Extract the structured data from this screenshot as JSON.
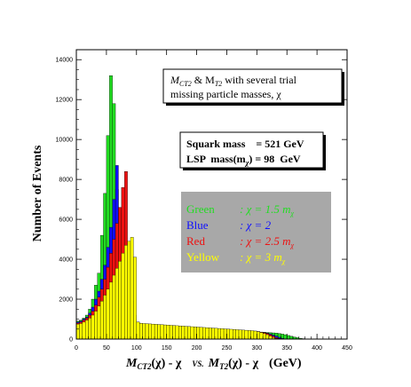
{
  "chart_data": {
    "type": "bar",
    "title_line1_a": "M",
    "title_line1_sub_a": "CT2",
    "title_line1_b": " & M",
    "title_line1_sub_b": "T2",
    "title_line1_c": " with several trial",
    "title_line2": "missing particle masses, χ",
    "info_line1": "Squark mass    = 521 GeV",
    "info_line2_a": "LSP  mass(m",
    "info_line2_sub": "χ",
    "info_line2_b": ") = 98  GeV",
    "xlabel": "M",
    "xlabel_full": "M_CT2(χ) - χ  vs. M_T2(χ) - χ   (GeV)",
    "xlabel_part1_sub": "CT2",
    "xlabel_part2": "(χ) - χ",
    "xlabel_vs": "VS.",
    "xlabel_part3": "M",
    "xlabel_part3_sub": "T2",
    "xlabel_part4": "(χ) - χ",
    "xlabel_unit": "(GeV)",
    "ylabel": "Number  of  Events",
    "xlim": [
      0,
      450
    ],
    "ylim": [
      0,
      14500
    ],
    "xticks": [
      0,
      50,
      100,
      150,
      200,
      250,
      300,
      350,
      400,
      450
    ],
    "yticks": [
      0,
      2000,
      4000,
      6000,
      8000,
      10000,
      12000,
      14000
    ],
    "bin_width": 5,
    "legend": [
      {
        "name": "Green",
        "sep": ":",
        "expr": "χ  = 1.5 m",
        "sub": "χ",
        "color": "#22dd22"
      },
      {
        "name": "Blue",
        "sep": ":",
        "expr": "χ  = 2",
        "sub": "",
        "color": "#1010ff"
      },
      {
        "name": "Red",
        "sep": ":",
        "expr": "χ  = 2.5 m",
        "sub": "χ",
        "color": "#ee1111"
      },
      {
        "name": "Yellow",
        "sep": ":",
        "expr": "χ  = 3 m",
        "sub": "χ",
        "color": "#ffff00"
      }
    ],
    "legend_bg": "#a8a8a8",
    "series": [
      {
        "name": "Green",
        "color": "#22dd22",
        "x": [
          0,
          5,
          10,
          15,
          20,
          25,
          30,
          35,
          40,
          45,
          50,
          55,
          60,
          65,
          70,
          75,
          80,
          85,
          90,
          95,
          100,
          105,
          110,
          115,
          120,
          125,
          130,
          135,
          140,
          145,
          150,
          155,
          160,
          165,
          170,
          175,
          180,
          185,
          190,
          195,
          200,
          205,
          210,
          215,
          220,
          225,
          230,
          235,
          240,
          245,
          250,
          255,
          260,
          265,
          270,
          275,
          280,
          285,
          290,
          295,
          300,
          305,
          310,
          315,
          320,
          325,
          330,
          335,
          340,
          345,
          350,
          355,
          360,
          365,
          370,
          375,
          380,
          385,
          390,
          395
        ],
        "values": [
          900,
          950,
          1050,
          1200,
          1500,
          2000,
          2700,
          3300,
          5200,
          7300,
          10200,
          13200,
          11800,
          7500,
          5500,
          3000,
          1800,
          1200,
          1100,
          900,
          760,
          750,
          740,
          730,
          720,
          710,
          700,
          690,
          680,
          670,
          660,
          650,
          640,
          630,
          620,
          610,
          600,
          590,
          580,
          570,
          560,
          550,
          540,
          530,
          520,
          510,
          500,
          490,
          480,
          470,
          460,
          450,
          440,
          430,
          420,
          410,
          400,
          390,
          380,
          370,
          360,
          350,
          340,
          330,
          320,
          310,
          300,
          280,
          250,
          220,
          180,
          140,
          100,
          70,
          40,
          20,
          10,
          5,
          2,
          0
        ]
      },
      {
        "name": "Blue",
        "color": "#1010ff",
        "x": [
          0,
          5,
          10,
          15,
          20,
          25,
          30,
          35,
          40,
          45,
          50,
          55,
          60,
          65,
          70,
          75,
          80,
          85,
          90,
          95,
          100,
          105,
          110,
          115,
          120,
          125,
          130,
          135,
          140,
          145,
          150,
          155,
          160,
          165,
          170,
          175,
          180,
          185,
          190,
          195,
          200,
          205,
          210,
          215,
          220,
          225,
          230,
          235,
          240,
          245,
          250,
          255,
          260,
          265,
          270,
          275,
          280,
          285,
          290,
          295,
          300,
          305,
          310,
          315,
          320,
          325,
          330,
          335,
          340,
          345,
          350,
          355,
          360
        ],
        "values": [
          850,
          900,
          1000,
          1100,
          1300,
          1600,
          2000,
          2400,
          3000,
          3700,
          4600,
          5600,
          7000,
          8700,
          6300,
          4500,
          3000,
          1800,
          1300,
          1000,
          800,
          760,
          750,
          740,
          730,
          720,
          710,
          700,
          690,
          680,
          670,
          660,
          650,
          640,
          630,
          620,
          610,
          600,
          590,
          580,
          570,
          560,
          550,
          540,
          530,
          520,
          510,
          500,
          490,
          480,
          470,
          460,
          450,
          440,
          430,
          420,
          410,
          400,
          390,
          380,
          360,
          340,
          320,
          300,
          260,
          200,
          150,
          90,
          40,
          15,
          5,
          2,
          0
        ]
      },
      {
        "name": "Red",
        "color": "#ee1111",
        "x": [
          0,
          5,
          10,
          15,
          20,
          25,
          30,
          35,
          40,
          45,
          50,
          55,
          60,
          65,
          70,
          75,
          80,
          85,
          90,
          95,
          100,
          105,
          110,
          115,
          120,
          125,
          130,
          135,
          140,
          145,
          150,
          155,
          160,
          165,
          170,
          175,
          180,
          185,
          190,
          195,
          200,
          205,
          210,
          215,
          220,
          225,
          230,
          235,
          240,
          245,
          250,
          255,
          260,
          265,
          270,
          275,
          280,
          285,
          290,
          295,
          300,
          305,
          310,
          315,
          320,
          325,
          330,
          335,
          340,
          345
        ],
        "values": [
          800,
          850,
          950,
          1050,
          1200,
          1400,
          1700,
          2100,
          2500,
          3000,
          3600,
          4300,
          5000,
          5800,
          6600,
          7600,
          8400,
          3900,
          1900,
          1200,
          850,
          780,
          770,
          760,
          750,
          740,
          730,
          720,
          710,
          700,
          690,
          680,
          670,
          660,
          650,
          640,
          630,
          620,
          610,
          600,
          590,
          580,
          570,
          560,
          550,
          540,
          530,
          520,
          510,
          500,
          490,
          480,
          470,
          460,
          450,
          440,
          430,
          420,
          410,
          400,
          380,
          350,
          320,
          280,
          220,
          150,
          80,
          30,
          10,
          0
        ]
      },
      {
        "name": "Yellow",
        "color": "#ffff00",
        "x": [
          0,
          5,
          10,
          15,
          20,
          25,
          30,
          35,
          40,
          45,
          50,
          55,
          60,
          65,
          70,
          75,
          80,
          85,
          90,
          95,
          100,
          105,
          110,
          115,
          120,
          125,
          130,
          135,
          140,
          145,
          150,
          155,
          160,
          165,
          170,
          175,
          180,
          185,
          190,
          195,
          200,
          205,
          210,
          215,
          220,
          225,
          230,
          235,
          240,
          245,
          250,
          255,
          260,
          265,
          270,
          275,
          280,
          285,
          290,
          295,
          300,
          305,
          310,
          315,
          320,
          325,
          330,
          335,
          340
        ],
        "values": [
          750,
          780,
          850,
          950,
          1050,
          1200,
          1400,
          1650,
          1900,
          2200,
          2500,
          2850,
          3200,
          3550,
          3900,
          4300,
          4700,
          4900,
          5100,
          4100,
          850,
          790,
          780,
          770,
          760,
          750,
          740,
          730,
          720,
          710,
          700,
          690,
          680,
          670,
          660,
          650,
          640,
          630,
          620,
          610,
          600,
          590,
          580,
          570,
          560,
          550,
          540,
          530,
          520,
          510,
          500,
          490,
          480,
          470,
          460,
          450,
          440,
          430,
          420,
          400,
          370,
          330,
          280,
          220,
          150,
          80,
          30,
          10,
          0
        ]
      }
    ]
  }
}
